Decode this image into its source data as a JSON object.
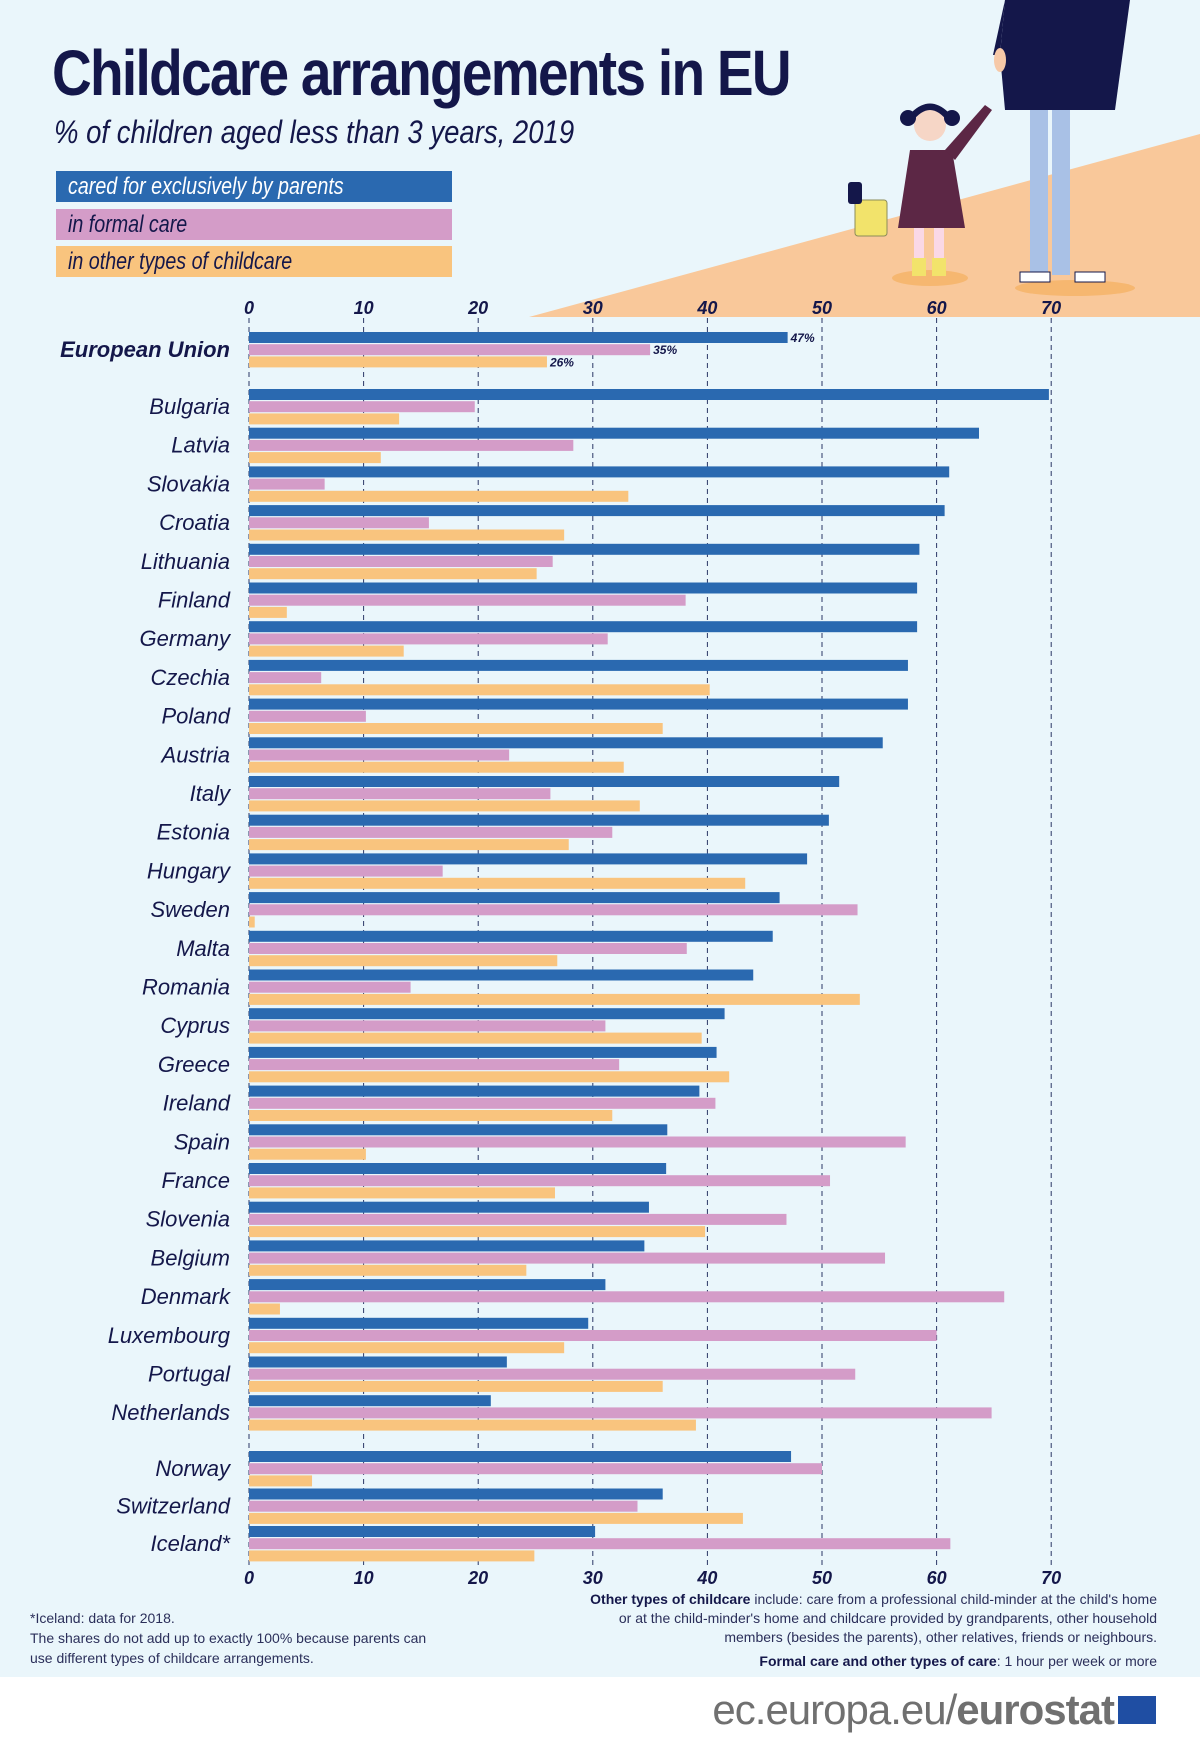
{
  "title": "Childcare arrangements in EU",
  "subtitle": "% of children aged less than 3 years, 2019",
  "colors": {
    "parents": "#2a69b0",
    "formal": "#d49cc8",
    "other": "#f9c47e",
    "text": "#14174a",
    "background": "#eaf6fb"
  },
  "chart_data": {
    "type": "bar",
    "orientation": "horizontal",
    "title": "Childcare arrangements in EU",
    "subtitle": "% of children aged less than 3 years, 2019",
    "xlim": [
      0,
      70
    ],
    "ticks": [
      "0",
      "10",
      "20",
      "30",
      "40",
      "50",
      "60",
      "70"
    ],
    "grid": "dashed vertical",
    "legend": "top-left",
    "categories": [
      "European Union",
      "Bulgaria",
      "Latvia",
      "Slovakia",
      "Croatia",
      "Lithuania",
      "Finland",
      "Germany",
      "Czechia",
      "Poland",
      "Austria",
      "Italy",
      "Estonia",
      "Hungary",
      "Sweden",
      "Malta",
      "Romania",
      "Cyprus",
      "Greece",
      "Ireland",
      "Spain",
      "France",
      "Slovenia",
      "Belgium",
      "Denmark",
      "Luxembourg",
      "Portugal",
      "Netherlands",
      "Norway",
      "Switzerland",
      "Iceland*"
    ],
    "series": [
      {
        "name": "cared for exclusively by parents",
        "values": [
          47,
          69.8,
          63.7,
          61.1,
          60.7,
          58.5,
          58.3,
          58.3,
          57.5,
          57.5,
          55.3,
          51.5,
          50.6,
          48.7,
          46.3,
          45.7,
          44.0,
          41.5,
          40.8,
          39.3,
          36.5,
          36.4,
          34.9,
          34.5,
          31.1,
          29.6,
          22.5,
          21.1,
          47.3,
          36.1,
          30.2
        ]
      },
      {
        "name": "in formal care",
        "values": [
          35,
          19.7,
          28.3,
          6.6,
          15.7,
          26.5,
          38.1,
          31.3,
          6.3,
          10.2,
          22.7,
          26.3,
          31.7,
          16.9,
          53.1,
          38.2,
          14.1,
          31.1,
          32.3,
          40.7,
          57.3,
          50.7,
          46.9,
          55.5,
          65.9,
          60.0,
          52.9,
          64.8,
          50.0,
          33.9,
          61.2
        ]
      },
      {
        "name": "in other types of childcare",
        "values": [
          26,
          13.1,
          11.5,
          33.1,
          27.5,
          25.1,
          3.3,
          13.5,
          40.2,
          36.1,
          32.7,
          34.1,
          27.9,
          43.3,
          0.5,
          26.9,
          53.3,
          39.5,
          41.9,
          31.7,
          10.2,
          26.7,
          39.8,
          24.2,
          2.7,
          27.5,
          36.1,
          39.0,
          5.5,
          43.1,
          24.9
        ]
      }
    ],
    "data_labels": {
      "European Union": [
        "47%",
        "35%",
        "26%"
      ]
    }
  },
  "footnotes": {
    "left": [
      "*Iceland: data for 2018.",
      "The shares do not add up to exactly 100% because parents can",
      "use different types of childcare arrangements."
    ],
    "right_bold_1": "Other types of childcare",
    "right_1a": " include: care from a professional child-minder at the child's home",
    "right_1b": "or at the child-minder's home and childcare provided by grandparents, other household",
    "right_1c": "members (besides the parents), other relatives, friends or neighbours.",
    "right_bold_2": "Formal care and other types of care",
    "right_2": ": 1 hour per week or more"
  },
  "logo": {
    "prefix": "ec.europa.eu/",
    "brand": "eurostat"
  }
}
